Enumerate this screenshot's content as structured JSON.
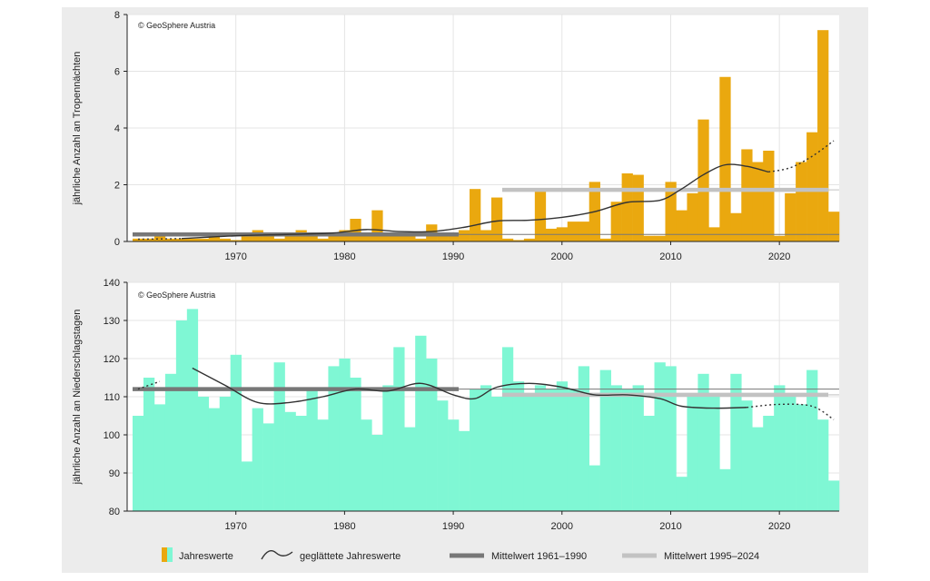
{
  "chart_data": [
    {
      "type": "bar",
      "credit": "© GeoSphere Austria",
      "ylabel": "jährliche Anzahl an Tropennächten",
      "xlabel": "",
      "xlim": [
        1960,
        2025
      ],
      "ylim": [
        0,
        8
      ],
      "yticks": [
        0,
        2,
        4,
        6,
        8
      ],
      "xticks": [
        1970,
        1980,
        1990,
        2000,
        2010,
        2020
      ],
      "grid": true,
      "bar_color": "#eaa80f",
      "years": [
        1961,
        1962,
        1963,
        1964,
        1965,
        1966,
        1967,
        1968,
        1969,
        1970,
        1971,
        1972,
        1973,
        1974,
        1975,
        1976,
        1977,
        1978,
        1979,
        1980,
        1981,
        1982,
        1983,
        1984,
        1985,
        1986,
        1987,
        1988,
        1989,
        1990,
        1991,
        1992,
        1993,
        1994,
        1995,
        1996,
        1997,
        1998,
        1999,
        2000,
        2001,
        2002,
        2003,
        2004,
        2005,
        2006,
        2007,
        2008,
        2009,
        2010,
        2011,
        2012,
        2013,
        2014,
        2015,
        2016,
        2017,
        2018,
        2019,
        2020,
        2021,
        2022,
        2023,
        2024,
        2025
      ],
      "values": [
        0.1,
        0.1,
        0.2,
        0.1,
        0.1,
        0.1,
        0.1,
        0.2,
        0.1,
        0.05,
        0.3,
        0.4,
        0.3,
        0.1,
        0.2,
        0.4,
        0.2,
        0.1,
        0.2,
        0.4,
        0.8,
        0.3,
        1.1,
        0.2,
        0.2,
        0.2,
        0.1,
        0.6,
        0.3,
        0.2,
        0.4,
        1.85,
        0.4,
        1.55,
        0.1,
        0.05,
        0.1,
        1.8,
        0.45,
        0.5,
        0.7,
        0.7,
        2.1,
        0.1,
        1.4,
        2.4,
        2.35,
        0.2,
        0.2,
        2.1,
        1.1,
        1.7,
        4.3,
        0.5,
        5.8,
        1.0,
        3.25,
        2.8,
        3.2,
        0.2,
        1.7,
        2.8,
        3.85,
        7.45,
        1.05
      ],
      "smoothed": [
        [
          1961,
          0.08
        ],
        [
          1965,
          0.1
        ],
        [
          1970,
          0.2
        ],
        [
          1975,
          0.25
        ],
        [
          1979,
          0.3
        ],
        [
          1982,
          0.42
        ],
        [
          1985,
          0.35
        ],
        [
          1988,
          0.35
        ],
        [
          1991,
          0.5
        ],
        [
          1994,
          0.72
        ],
        [
          1997,
          0.75
        ],
        [
          2000,
          0.85
        ],
        [
          2003,
          1.05
        ],
        [
          2006,
          1.38
        ],
        [
          2009,
          1.45
        ],
        [
          2011,
          1.85
        ],
        [
          2013,
          2.35
        ],
        [
          2015,
          2.7
        ],
        [
          2017,
          2.65
        ],
        [
          2019,
          2.45
        ],
        [
          2021,
          2.6
        ],
        [
          2023,
          3.0
        ],
        [
          2025,
          3.55
        ]
      ],
      "smoothed_dotted_after": 2018,
      "smoothed_dotted_before": 1964,
      "mean_1961_1990": 0.25,
      "mean_1995_2024": 1.82
    },
    {
      "type": "bar",
      "credit": "© GeoSphere Austria",
      "ylabel": "jährliche Anzahl an Niederschlagstagen",
      "xlabel": "",
      "xlim": [
        1960,
        2025
      ],
      "ylim": [
        80,
        140
      ],
      "yticks": [
        80,
        90,
        100,
        110,
        120,
        130,
        140
      ],
      "xticks": [
        1970,
        1980,
        1990,
        2000,
        2010,
        2020
      ],
      "grid": true,
      "bar_color": "#7ff7d4",
      "years": [
        1961,
        1962,
        1963,
        1964,
        1965,
        1966,
        1967,
        1968,
        1969,
        1970,
        1971,
        1972,
        1973,
        1974,
        1975,
        1976,
        1977,
        1978,
        1979,
        1980,
        1981,
        1982,
        1983,
        1984,
        1985,
        1986,
        1987,
        1988,
        1989,
        1990,
        1991,
        1992,
        1993,
        1994,
        1995,
        1996,
        1997,
        1998,
        1999,
        2000,
        2001,
        2002,
        2003,
        2004,
        2005,
        2006,
        2007,
        2008,
        2009,
        2010,
        2011,
        2012,
        2013,
        2014,
        2015,
        2016,
        2017,
        2018,
        2019,
        2020,
        2021,
        2022,
        2023,
        2024,
        2025
      ],
      "values": [
        105,
        115,
        108,
        116,
        130,
        133,
        110,
        107,
        110,
        121,
        93,
        107,
        103,
        119,
        106,
        105,
        112,
        104,
        118,
        120,
        115,
        104,
        100,
        113,
        123,
        102,
        126,
        120,
        109,
        104,
        101,
        112,
        113,
        110,
        123,
        114,
        110,
        113,
        112,
        114,
        112,
        118,
        92,
        117,
        113,
        112,
        113,
        105,
        119,
        118,
        89,
        110,
        116,
        110,
        91,
        116,
        109,
        102,
        105,
        113,
        110,
        108,
        117,
        104,
        88
      ],
      "smoothed": [
        [
          1961,
          112
        ],
        [
          1963,
          114
        ],
        [
          1966,
          117.5
        ],
        [
          1969,
          113
        ],
        [
          1972,
          108.5
        ],
        [
          1975,
          108.5
        ],
        [
          1978,
          110
        ],
        [
          1981,
          112
        ],
        [
          1984,
          111.5
        ],
        [
          1987,
          113.5
        ],
        [
          1990,
          110.5
        ],
        [
          1992,
          109.5
        ],
        [
          1994,
          112.5
        ],
        [
          1997,
          113.5
        ],
        [
          2000,
          112.5
        ],
        [
          2003,
          110.5
        ],
        [
          2006,
          110.5
        ],
        [
          2009,
          109.5
        ],
        [
          2011,
          107.5
        ],
        [
          2014,
          107
        ],
        [
          2017,
          107.2
        ],
        [
          2020,
          108
        ],
        [
          2023,
          107.5
        ],
        [
          2025,
          104
        ]
      ],
      "smoothed_dotted_after": 2017,
      "smoothed_dotted_before": 1964,
      "mean_1961_1990": 112,
      "mean_1995_2024": 110.5
    }
  ],
  "legend": {
    "bars_label": "Jahreswerte",
    "smooth_label": "geglättete Jahreswerte",
    "mean1_label": "Mittelwert 1961–1990",
    "mean2_label": "Mittelwert 1995–2024",
    "mean1_color": "#777777",
    "mean2_color": "#c2c2c2"
  }
}
